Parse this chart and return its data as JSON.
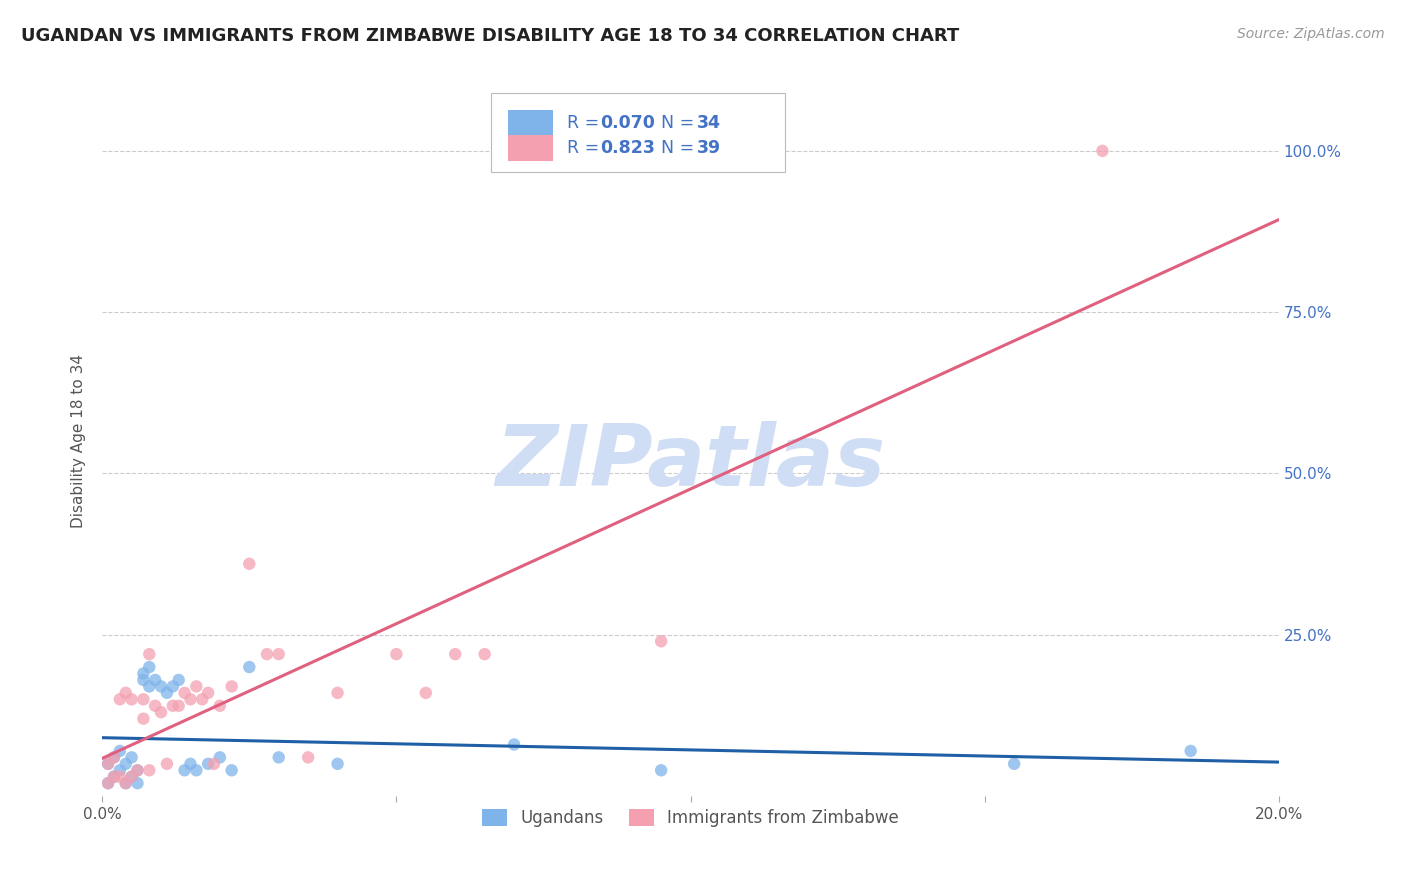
{
  "title": "UGANDAN VS IMMIGRANTS FROM ZIMBABWE DISABILITY AGE 18 TO 34 CORRELATION CHART",
  "source": "Source: ZipAtlas.com",
  "ylabel": "Disability Age 18 to 34",
  "xlim": [
    0.0,
    0.2
  ],
  "ylim": [
    0.0,
    1.1
  ],
  "color_ugandan": "#7EB4EA",
  "color_zimbabwe": "#F4A0B0",
  "color_ugandan_line": "#1F5FA6",
  "color_zimbabwe_line": "#E06080",
  "watermark": "ZIPatlas",
  "watermark_color": "#D0DEF5",
  "background_color": "#FFFFFF",
  "title_color": "#222222",
  "axis_label_color": "#555555",
  "right_tick_color": "#4472C4",
  "grid_color": "#CCCCCC",
  "ugandan_x": [
    0.001,
    0.001,
    0.002,
    0.002,
    0.003,
    0.003,
    0.004,
    0.004,
    0.005,
    0.005,
    0.006,
    0.006,
    0.007,
    0.007,
    0.008,
    0.008,
    0.009,
    0.01,
    0.011,
    0.012,
    0.013,
    0.014,
    0.015,
    0.016,
    0.018,
    0.02,
    0.022,
    0.025,
    0.03,
    0.04,
    0.07,
    0.095,
    0.155,
    0.185
  ],
  "ugandan_y": [
    0.02,
    0.05,
    0.03,
    0.06,
    0.04,
    0.07,
    0.02,
    0.05,
    0.03,
    0.06,
    0.04,
    0.02,
    0.18,
    0.19,
    0.17,
    0.2,
    0.18,
    0.17,
    0.16,
    0.17,
    0.18,
    0.04,
    0.05,
    0.04,
    0.05,
    0.06,
    0.04,
    0.2,
    0.06,
    0.05,
    0.08,
    0.04,
    0.05,
    0.07
  ],
  "zimbabwe_x": [
    0.001,
    0.001,
    0.002,
    0.002,
    0.003,
    0.003,
    0.004,
    0.004,
    0.005,
    0.005,
    0.006,
    0.007,
    0.007,
    0.008,
    0.008,
    0.009,
    0.01,
    0.011,
    0.012,
    0.013,
    0.014,
    0.015,
    0.016,
    0.017,
    0.018,
    0.019,
    0.02,
    0.022,
    0.025,
    0.028,
    0.03,
    0.035,
    0.04,
    0.05,
    0.055,
    0.06,
    0.065,
    0.095,
    0.17
  ],
  "zimbabwe_y": [
    0.02,
    0.05,
    0.03,
    0.06,
    0.03,
    0.15,
    0.02,
    0.16,
    0.03,
    0.15,
    0.04,
    0.12,
    0.15,
    0.04,
    0.22,
    0.14,
    0.13,
    0.05,
    0.14,
    0.14,
    0.16,
    0.15,
    0.17,
    0.15,
    0.16,
    0.05,
    0.14,
    0.17,
    0.36,
    0.22,
    0.22,
    0.06,
    0.16,
    0.22,
    0.16,
    0.22,
    0.22,
    0.24,
    1.0
  ],
  "legend_labels": [
    "Ugandans",
    "Immigrants from Zimbabwe"
  ],
  "legend_text_color": "#4472C4",
  "marker_size": 80
}
